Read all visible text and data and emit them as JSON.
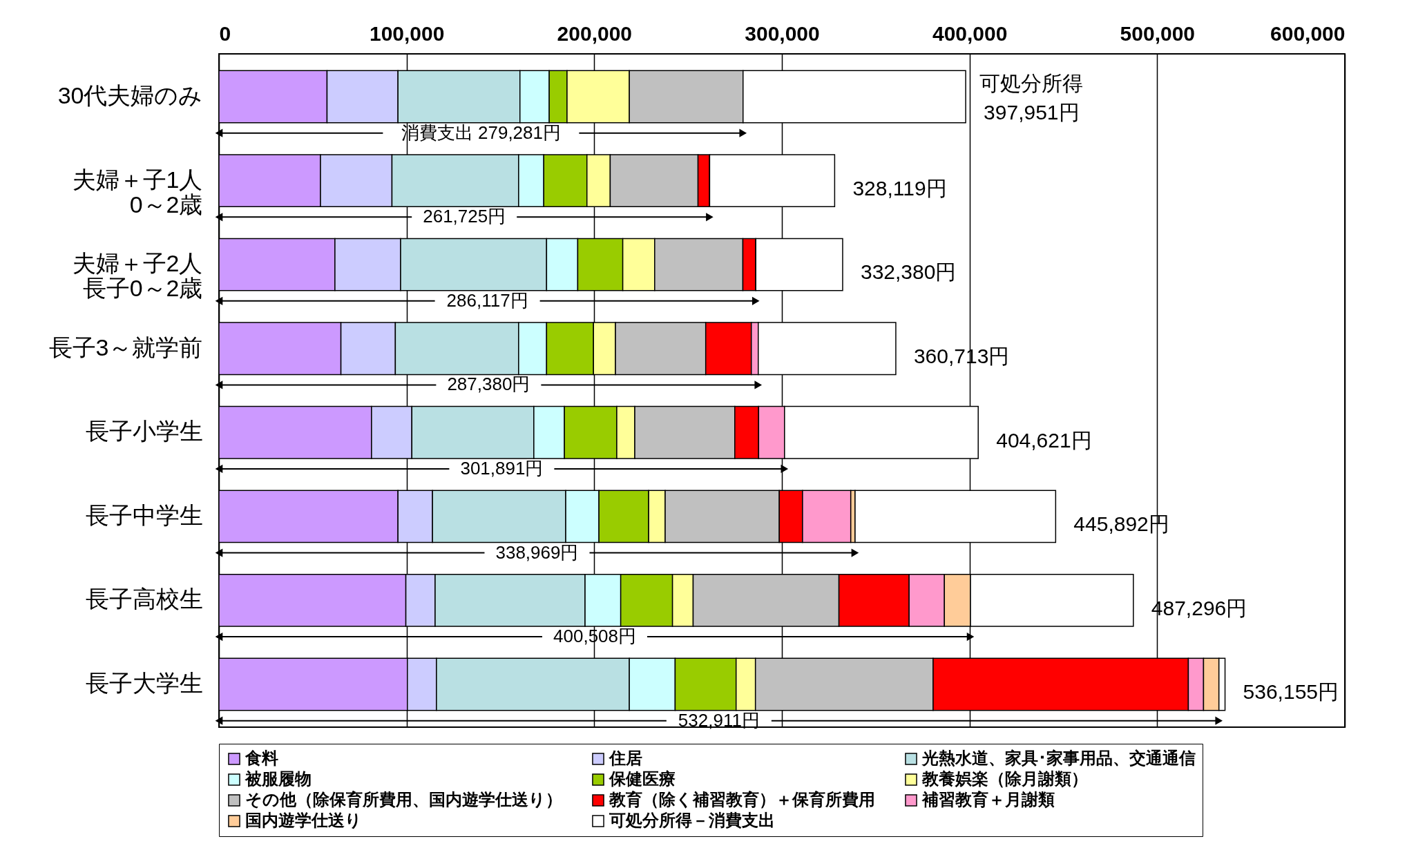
{
  "chart_data": {
    "type": "bar",
    "orientation": "horizontal",
    "stacked": true,
    "categories": [
      "30代夫婦のみ",
      "夫婦＋子1人0～2歳",
      "夫婦＋子2人長子0～2歳",
      "長子3～就学前",
      "長子小学生",
      "長子中学生",
      "長子高校生",
      "長子大学生"
    ],
    "series": [
      {
        "name": "食料",
        "color": "#cc99ff",
        "values": [
          57600,
          54100,
          61800,
          65000,
          81300,
          95400,
          99600,
          100400
        ]
      },
      {
        "name": "住居",
        "color": "#ccccff",
        "values": [
          37800,
          38100,
          35000,
          29000,
          21500,
          18400,
          15600,
          15500
        ]
      },
      {
        "name": "光熱水道、家具･家事用品、交通通信",
        "color": "#b9e0e3",
        "values": [
          65000,
          67500,
          77800,
          65700,
          65000,
          71000,
          79900,
          102800
        ]
      },
      {
        "name": "被服履物",
        "color": "#ccffff",
        "values": [
          15600,
          13400,
          16600,
          14900,
          16300,
          17700,
          19000,
          24400
        ]
      },
      {
        "name": "保健医療",
        "color": "#99cc00",
        "values": [
          9500,
          23000,
          24000,
          25000,
          27900,
          26500,
          27600,
          32500
        ]
      },
      {
        "name": "教養娯楽（除月謝類）",
        "color": "#ffff99",
        "values": [
          33200,
          12400,
          17000,
          11700,
          9600,
          8800,
          11000,
          10300
        ]
      },
      {
        "name": "その他（除保育所費用、国内遊学仕送り）",
        "color": "#c0c0c0",
        "values": [
          60600,
          46800,
          47000,
          48100,
          53300,
          60800,
          77700,
          94700
        ]
      },
      {
        "name": "教育（除く補習教育）＋保育所費用",
        "color": "#ff0000",
        "values": [
          0,
          6200,
          6900,
          24300,
          12700,
          12400,
          37400,
          136000
        ]
      },
      {
        "name": "補習教育＋月謝類",
        "color": "#ff99cc",
        "values": [
          0,
          0,
          0,
          3700,
          13800,
          25700,
          18800,
          8100
        ]
      },
      {
        "name": "国内遊学仕送り",
        "color": "#ffcc99",
        "values": [
          0,
          0,
          0,
          0,
          null,
          2300,
          13900,
          8200
        ]
      },
      {
        "name": "可処分所得－消費支出",
        "color": "#ffffff",
        "values": [
          118651,
          66619,
          46280,
          73313,
          103221,
          106892,
          86796,
          3255
        ]
      }
    ],
    "totals": [
      "397,951円",
      "328,119円",
      "332,380円",
      "360,713円",
      "404,621円",
      "445,892円",
      "487,296円",
      "536,155円"
    ],
    "annotations": [
      "可処分所得",
      "消費支出  279,281円",
      "261,725円",
      "286,117円",
      "287,380円",
      "301,891円",
      "338,969円",
      "400,508円",
      "532,911円"
    ],
    "xlim": [
      0,
      600000
    ],
    "xticks": [
      0,
      {
        "value": 100000,
        "label": "100,000"
      },
      {
        "value": 200000,
        "label": "200,000"
      },
      {
        "value": 300000,
        "label": "300,000"
      },
      {
        "value": 400000,
        "label": "400,000"
      },
      {
        "value": 500000,
        "label": "500,000"
      },
      {
        "value": 600000,
        "label": "600,000"
      }
    ],
    "grid": "x",
    "legend": "bottom"
  }
}
